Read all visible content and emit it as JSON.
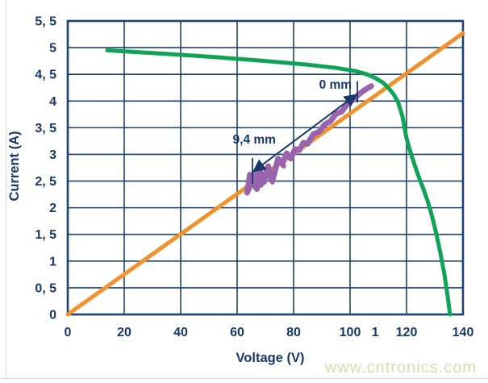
{
  "page": {
    "watermark": "www.cntronics.com"
  },
  "colors": {
    "text": "#17386b",
    "grid": "#1c4273",
    "border": "#1c4273",
    "arrow": "#17386b",
    "pv_curve": "#0fa455",
    "load_line": "#f0922d",
    "trace": "#9a63ae",
    "watermark": "#c9e7a7"
  },
  "chart_data": {
    "type": "line",
    "title": "",
    "xlabel": "Voltage (V)",
    "ylabel": "Current (A)",
    "xlim": [
      0,
      140
    ],
    "ylim": [
      0,
      5.5
    ],
    "grid": true,
    "legend": "none",
    "x_ticks": [
      {
        "v": 0,
        "label": "0"
      },
      {
        "v": 20,
        "label": "20"
      },
      {
        "v": 40,
        "label": "40"
      },
      {
        "v": 60,
        "label": "60"
      },
      {
        "v": 80,
        "label": "80"
      },
      {
        "v": 100,
        "label": "100"
      },
      {
        "v": 108.9,
        "label": "1",
        "gridline": false
      },
      {
        "v": 120,
        "label": "120"
      },
      {
        "v": 140,
        "label": "140"
      }
    ],
    "y_ticks": [
      {
        "v": 0,
        "label": "0"
      },
      {
        "v": 0.5,
        "label": "0, 5"
      },
      {
        "v": 1,
        "label": "1"
      },
      {
        "v": 1.5,
        "label": "1, 5"
      },
      {
        "v": 2,
        "label": "2"
      },
      {
        "v": 2.5,
        "label": "2, 5"
      },
      {
        "v": 3,
        "label": "3"
      },
      {
        "v": 3.5,
        "label": "3, 5"
      },
      {
        "v": 4,
        "label": "4"
      },
      {
        "v": 4.5,
        "label": "4, 5"
      },
      {
        "v": 5,
        "label": "5"
      },
      {
        "v": 5.5,
        "label": "5, 5"
      }
    ],
    "series": [
      {
        "name": "load-line",
        "color_key": "load_line",
        "width": 5,
        "points": [
          [
            0,
            0
          ],
          [
            140,
            5.27
          ]
        ]
      },
      {
        "name": "pv-curve",
        "color_key": "pv_curve",
        "width": 5,
        "points": [
          [
            14,
            4.95
          ],
          [
            30,
            4.9
          ],
          [
            50,
            4.83
          ],
          [
            70,
            4.75
          ],
          [
            85,
            4.68
          ],
          [
            95,
            4.62
          ],
          [
            102,
            4.56
          ],
          [
            106,
            4.5
          ],
          [
            109,
            4.43
          ],
          [
            111.5,
            4.35
          ],
          [
            113.5,
            4.25
          ],
          [
            115.5,
            4.12
          ],
          [
            117,
            3.98
          ],
          [
            118.5,
            3.72
          ],
          [
            120,
            3.3
          ],
          [
            121.5,
            3.02
          ],
          [
            123,
            2.78
          ],
          [
            124.5,
            2.55
          ],
          [
            126,
            2.35
          ],
          [
            127.5,
            2.12
          ],
          [
            129,
            1.85
          ],
          [
            130.5,
            1.52
          ],
          [
            132,
            1.15
          ],
          [
            133.5,
            0.72
          ],
          [
            134.8,
            0.25
          ],
          [
            135.4,
            0
          ]
        ]
      },
      {
        "name": "measured-trace",
        "color_key": "trace",
        "width": 7,
        "points": [
          [
            63.5,
            2.28
          ],
          [
            64.5,
            2.62
          ],
          [
            66,
            2.42
          ],
          [
            67,
            2.35
          ],
          [
            68,
            2.72
          ],
          [
            69.5,
            2.48
          ],
          [
            71,
            2.78
          ],
          [
            72,
            2.55
          ],
          [
            73,
            2.62
          ],
          [
            74.5,
            2.92
          ],
          [
            76,
            2.82
          ],
          [
            77.5,
            3.02
          ],
          [
            79,
            2.92
          ],
          [
            80.5,
            3.1
          ],
          [
            82,
            3.08
          ],
          [
            83.5,
            3.22
          ],
          [
            85,
            3.2
          ],
          [
            87,
            3.38
          ],
          [
            89,
            3.42
          ],
          [
            91,
            3.56
          ],
          [
            93,
            3.62
          ],
          [
            95,
            3.76
          ],
          [
            97,
            3.8
          ],
          [
            99,
            3.94
          ],
          [
            101,
            4.02
          ],
          [
            103,
            4.12
          ],
          [
            105,
            4.2
          ],
          [
            107.5,
            4.28
          ]
        ]
      },
      {
        "name": "measured-trace-overlay",
        "color_key": "trace",
        "width": 6,
        "points": [
          [
            64,
            2.32
          ],
          [
            66.5,
            2.68
          ],
          [
            68.5,
            2.42
          ],
          [
            70.5,
            2.72
          ],
          [
            72.5,
            2.48
          ],
          [
            74.5,
            2.88
          ],
          [
            76.5,
            2.78
          ]
        ]
      }
    ],
    "annotations": {
      "measure_arrow": {
        "from": [
          102,
          4.11
        ],
        "to": [
          66,
          2.69
        ],
        "double_headed": true
      },
      "ticks": [
        {
          "v": 102.6,
          "i_from": 3.97,
          "i_to": 4.37
        },
        {
          "v": 65.4,
          "i_from": 2.45,
          "i_to": 2.93
        }
      ],
      "labels": [
        {
          "text": "0 mm",
          "v": 100.6,
          "i": 4.23,
          "anchor": "end"
        },
        {
          "text": "9,4 mm",
          "v": 73.7,
          "i": 3.2,
          "anchor": "end"
        }
      ]
    }
  }
}
